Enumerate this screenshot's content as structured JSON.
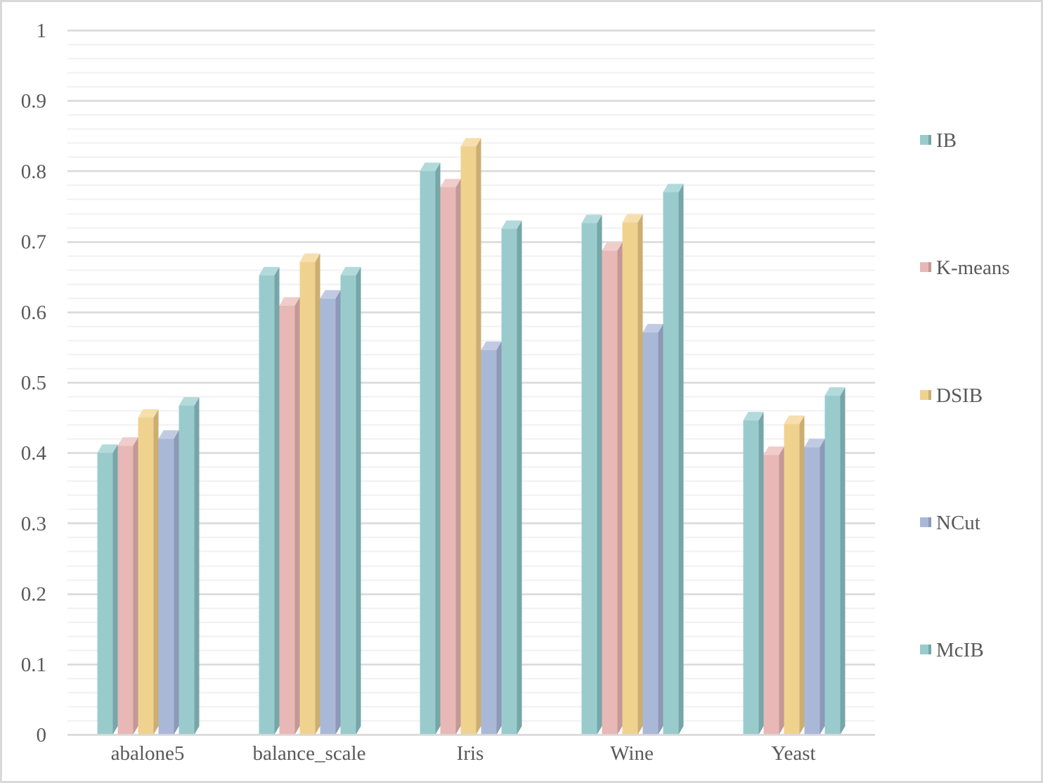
{
  "chart_data": {
    "type": "bar",
    "style": "3d-clustered-column",
    "title": "",
    "xlabel": "",
    "ylabel": "",
    "categories": [
      "abalone5",
      "balance_scale",
      "Iris",
      "Wine",
      "Yeast"
    ],
    "series": [
      {
        "name": "IB",
        "color": "#99CBCD",
        "side": "#76A6A8",
        "top": "#B3DADB",
        "values": [
          0.4,
          0.652,
          0.8,
          0.726,
          0.446
        ]
      },
      {
        "name": "K-means",
        "color": "#E8B8B6",
        "side": "#C39896",
        "top": "#F0CCCA",
        "values": [
          0.41,
          0.609,
          0.777,
          0.687,
          0.397
        ]
      },
      {
        "name": "DSIB",
        "color": "#F0D28F",
        "side": "#CBAE72",
        "top": "#F6DFAD",
        "values": [
          0.45,
          0.671,
          0.835,
          0.727,
          0.441
        ]
      },
      {
        "name": "NCut",
        "color": "#AAB8D8",
        "side": "#8D99B6",
        "top": "#C0CBE3",
        "values": [
          0.42,
          0.619,
          0.546,
          0.571,
          0.408
        ]
      },
      {
        "name": "McIB",
        "color": "#99CBCD",
        "side": "#76A6A8",
        "top": "#B3DADB",
        "values": [
          0.467,
          0.652,
          0.718,
          0.77,
          0.481
        ]
      }
    ],
    "ylim": [
      0,
      1
    ],
    "yticks": [
      "0",
      "0.1",
      "0.2",
      "0.3",
      "0.4",
      "0.5",
      "0.6",
      "0.7",
      "0.8",
      "0.9",
      "1"
    ],
    "grid": {
      "major": true,
      "minor": true,
      "major_step": 0.1,
      "minor_step": 0.02
    },
    "legend": {
      "position": "right",
      "entries": [
        "IB",
        "K-means",
        "DSIB",
        "NCut",
        "McIB"
      ]
    }
  }
}
